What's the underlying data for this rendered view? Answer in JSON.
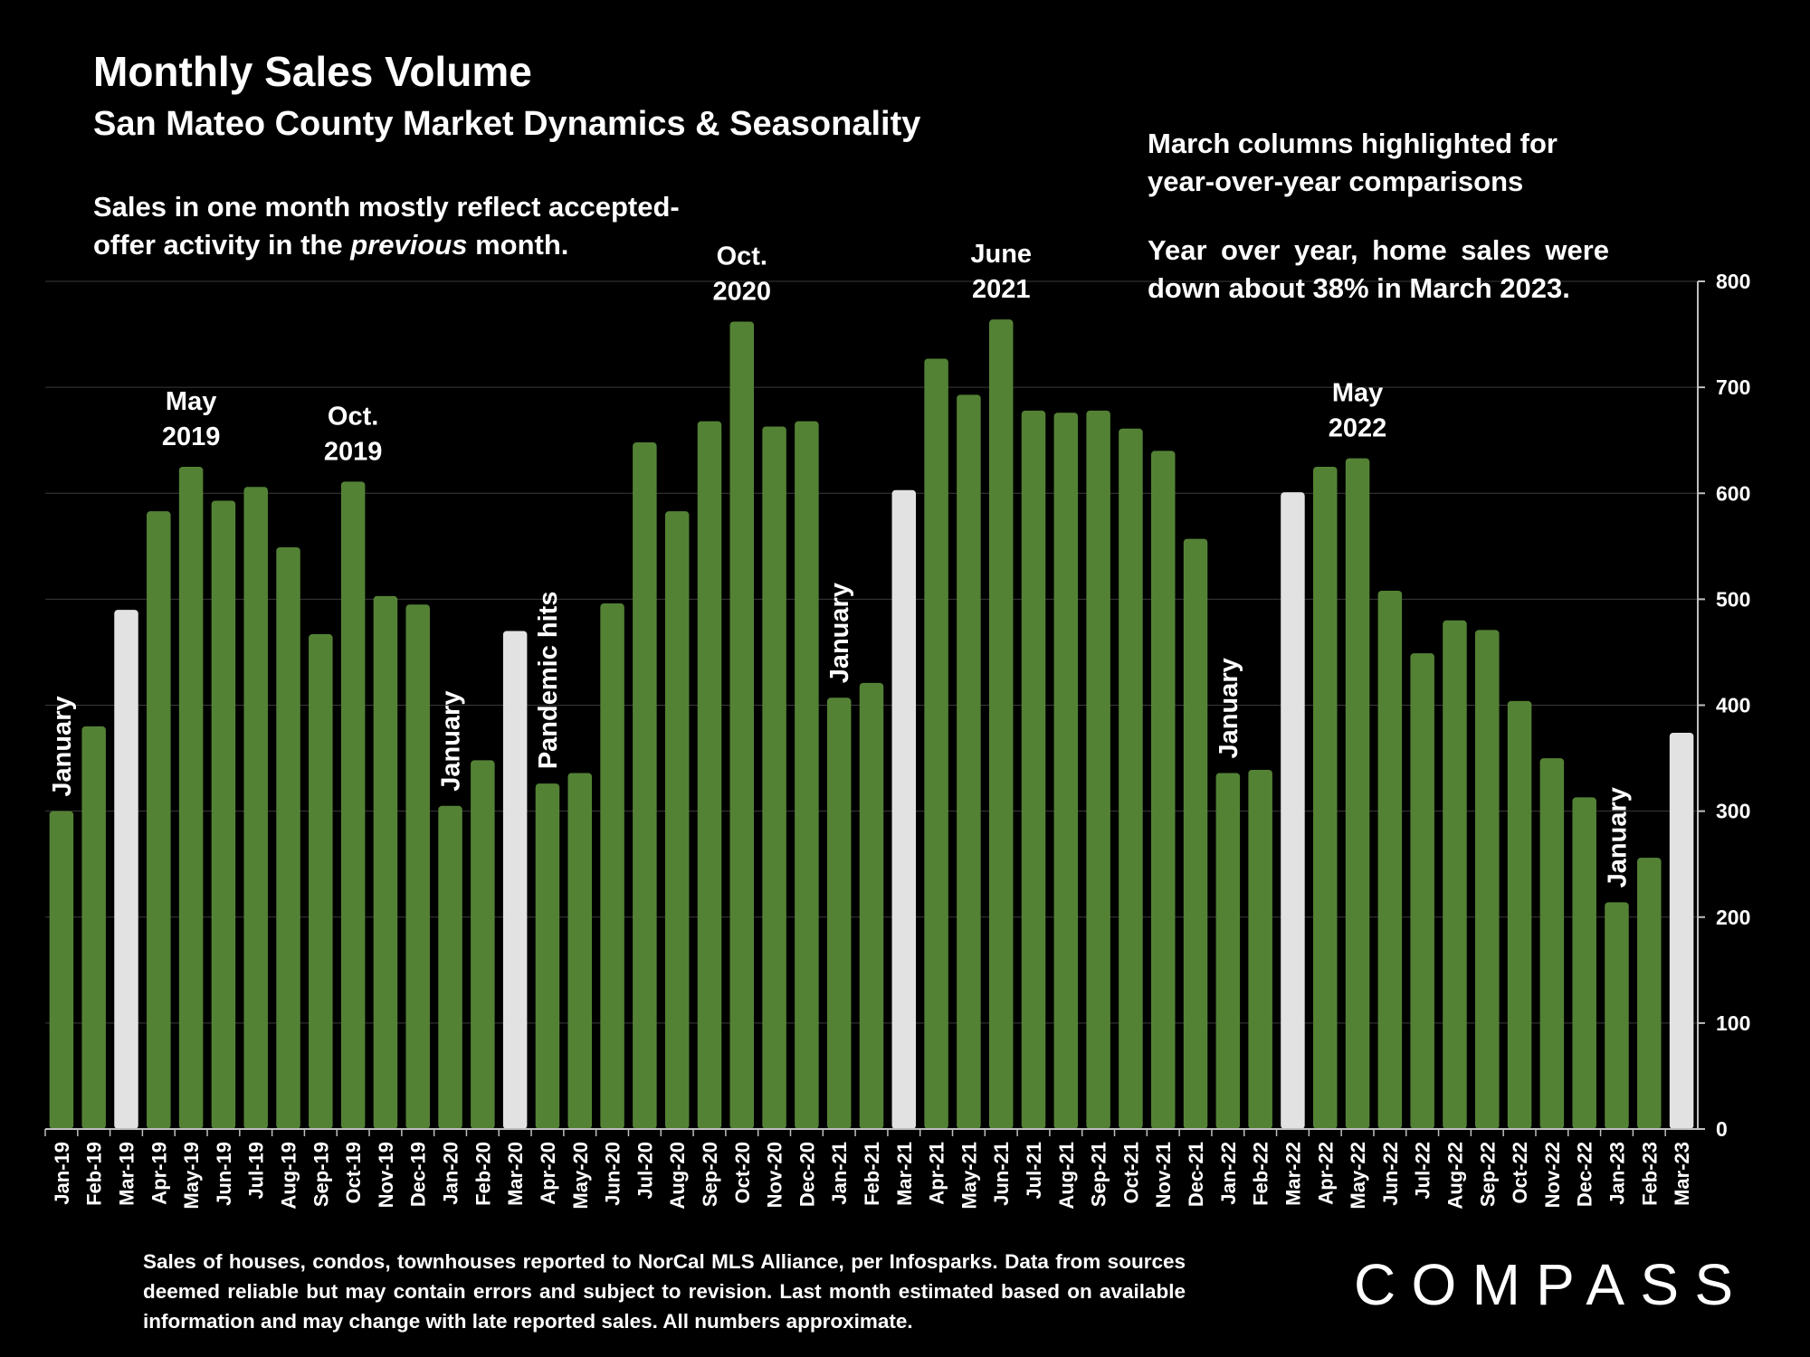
{
  "header": {
    "title": "Monthly Sales Volume",
    "subtitle": "San Mateo County Market Dynamics & Seasonality"
  },
  "notes": {
    "left_line1": "Sales in one month mostly reflect accepted-",
    "left_line2_pre": "offer activity in the ",
    "left_line2_em": "previous",
    "left_line2_post": " month.",
    "right_p1": "March columns highlighted for year-over-year comparisons",
    "right_p2": "Year over year, home sales were down  about 38% in March 2023."
  },
  "footnote": "Sales of houses, condos, townhouses reported to NorCal MLS Alliance, per Infosparks. Data from sources deemed reliable but may contain errors and subject to revision. Last month estimated based on available information and may change with late reported sales. All numbers approximate.",
  "logo": {
    "text": "COMPASS",
    "icon": "compass-o-icon"
  },
  "colors": {
    "background": "#000000",
    "bar": "#548235",
    "highlight": "#e2e2e2",
    "grid": "#3a3a3a",
    "axis": "#bfbfbf",
    "text": "#ffffff"
  },
  "chart_data": {
    "type": "bar",
    "categories": [
      "Jan-19",
      "Feb-19",
      "Mar-19",
      "Apr-19",
      "May-19",
      "Jun-19",
      "Jul-19",
      "Aug-19",
      "Sep-19",
      "Oct-19",
      "Nov-19",
      "Dec-19",
      "Jan-20",
      "Feb-20",
      "Mar-20",
      "Apr-20",
      "May-20",
      "Jun-20",
      "Jul-20",
      "Aug-20",
      "Sep-20",
      "Oct-20",
      "Nov-20",
      "Dec-20",
      "Jan-21",
      "Feb-21",
      "Mar-21",
      "Apr-21",
      "May-21",
      "Jun-21",
      "Jul-21",
      "Aug-21",
      "Sep-21",
      "Oct-21",
      "Nov-21",
      "Dec-21",
      "Jan-22",
      "Feb-22",
      "Mar-22",
      "Apr-22",
      "May-22",
      "Jun-22",
      "Jul-22",
      "Aug-22",
      "Sep-22",
      "Oct-22",
      "Nov-22",
      "Dec-22",
      "Jan-23",
      "Feb-23",
      "Mar-23"
    ],
    "values": [
      300,
      380,
      490,
      583,
      625,
      593,
      606,
      549,
      467,
      611,
      503,
      495,
      305,
      348,
      470,
      326,
      336,
      496,
      648,
      583,
      668,
      762,
      663,
      668,
      407,
      421,
      603,
      727,
      693,
      764,
      678,
      676,
      678,
      661,
      640,
      557,
      336,
      339,
      601,
      625,
      633,
      508,
      449,
      480,
      471,
      404,
      350,
      313,
      214,
      256,
      374
    ],
    "highlighted": [
      "Mar-19",
      "Mar-20",
      "Mar-21",
      "Mar-22",
      "Mar-23"
    ],
    "ylim": [
      0,
      800
    ],
    "yticks": [
      0,
      100,
      200,
      300,
      400,
      500,
      600,
      700,
      800
    ],
    "yaxis_side": "right",
    "grid": true,
    "annotations": [
      {
        "text": "January",
        "at": "Jan-19",
        "orientation": "vertical"
      },
      {
        "text": "May\n2019",
        "at": "May-19",
        "orientation": "horizontal"
      },
      {
        "text": "Oct.\n2019",
        "at": "Oct-19",
        "orientation": "horizontal"
      },
      {
        "text": "January",
        "at": "Jan-20",
        "orientation": "vertical"
      },
      {
        "text": "Pandemic hits",
        "at": "Apr-20",
        "orientation": "vertical"
      },
      {
        "text": "Oct.\n2020",
        "at": "Oct-20",
        "orientation": "horizontal"
      },
      {
        "text": "January",
        "at": "Jan-21",
        "orientation": "vertical"
      },
      {
        "text": "June\n2021",
        "at": "Jun-21",
        "orientation": "horizontal"
      },
      {
        "text": "January",
        "at": "Jan-22",
        "orientation": "vertical"
      },
      {
        "text": "May\n2022",
        "at": "May-22",
        "orientation": "horizontal"
      },
      {
        "text": "January",
        "at": "Jan-23",
        "orientation": "vertical"
      }
    ]
  }
}
